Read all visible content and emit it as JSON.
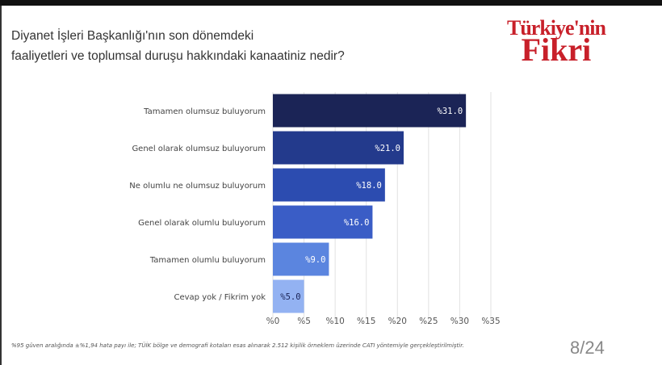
{
  "header": {
    "title_line1": "Diyanet İşleri Başkanlığı'nın son dönemdeki",
    "title_line2": "faaliyetleri ve toplumsal duruşu hakkındaki kanaatiniz nedir?",
    "logo_line1": "Türkiye'nin",
    "logo_line2": "Fikri"
  },
  "footer": {
    "note": "%95 güven aralığında ±%1,94 hata payı ile; TÜİK bölge ve demografi kotaları esas alınarak 2.512 kişilik örneklem üzerinde CATI yöntemiyle gerçekleştirilmiştir.",
    "page": "8/24"
  },
  "chart_data": {
    "type": "bar",
    "orientation": "horizontal",
    "categories": [
      "Tamamen olumsuz buluyorum",
      "Genel olarak olumsuz buluyorum",
      "Ne olumlu ne olumsuz buluyorum",
      "Genel olarak olumlu buluyorum",
      "Tamamen olumlu buluyorum",
      "Cevap yok / Fikrim yok"
    ],
    "values": [
      31.0,
      21.0,
      18.0,
      16.0,
      9.0,
      5.0
    ],
    "data_labels": [
      "%31.0",
      "%21.0",
      "%18.0",
      "%16.0",
      "%9.0",
      "%5.0"
    ],
    "colors": [
      "#1b2456",
      "#233a8c",
      "#2c4cb0",
      "#3a5dc6",
      "#5b85df",
      "#93b2f2"
    ],
    "xlim": [
      0,
      35
    ],
    "xticks": [
      "%0",
      "%5",
      "%10",
      "%15",
      "%20",
      "%25",
      "%30",
      "%35"
    ],
    "grid": true
  }
}
